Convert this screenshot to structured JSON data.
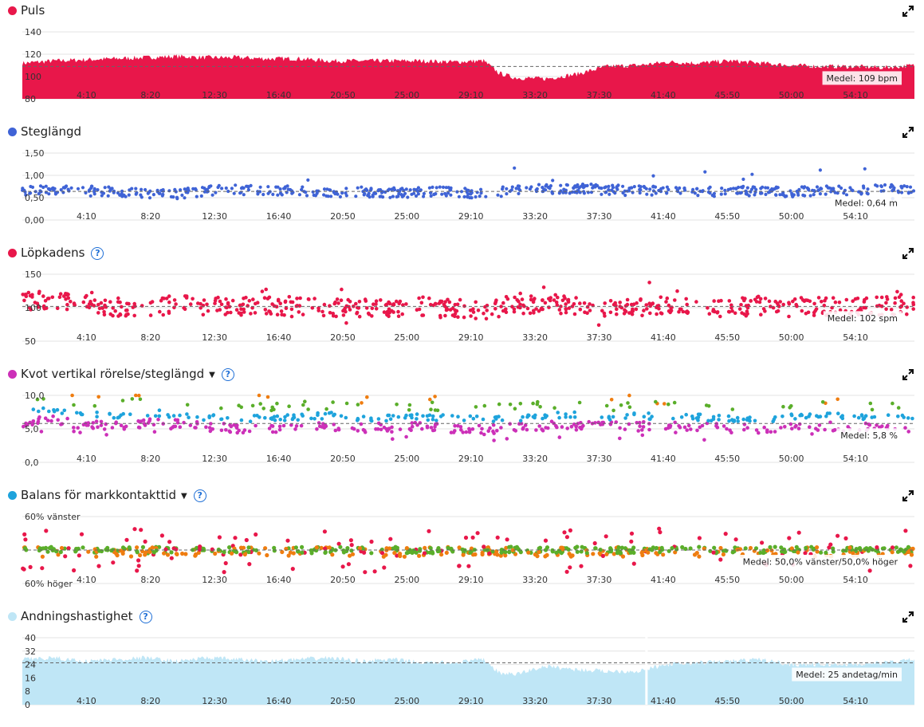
{
  "x_ticks": [
    "4:10",
    "8:20",
    "12:30",
    "16:40",
    "20:50",
    "25:00",
    "29:10",
    "33:20",
    "37:30",
    "41:40",
    "45:50",
    "50:00",
    "54:10"
  ],
  "chart_data": [
    {
      "id": "puls",
      "type": "area",
      "title": "Puls",
      "color": "#e8174a",
      "ylim": [
        80,
        140
      ],
      "y_ticks": [
        "140",
        "120",
        "100",
        "80"
      ],
      "y_tick_values": [
        140,
        120,
        100,
        80
      ],
      "average_label": "Medel: 109 bpm",
      "average_value": 109,
      "x_unit": "minutes",
      "x": [
        0,
        2,
        4,
        6,
        8,
        10,
        12,
        14,
        16,
        18,
        20,
        22,
        24,
        26,
        28,
        30,
        31,
        32,
        34,
        36,
        38,
        40,
        42,
        44,
        46,
        48,
        50,
        52,
        54,
        56,
        58
      ],
      "y": [
        112,
        114,
        115,
        116,
        117,
        118,
        117,
        117,
        116,
        116,
        114,
        114,
        114,
        114,
        113,
        114,
        103,
        99,
        98,
        102,
        109,
        110,
        113,
        112,
        114,
        112,
        110,
        109,
        109,
        108,
        110
      ]
    },
    {
      "id": "steglangd",
      "type": "scatter",
      "title": "Steglängd",
      "color": "#3f63d6",
      "ylim": [
        0,
        1.5
      ],
      "y_ticks": [
        "1,50",
        "1,00",
        "0,50",
        "0,00"
      ],
      "y_tick_values": [
        1.5,
        1.0,
        0.5,
        0.0
      ],
      "average_label": "Medel: 0,64 m",
      "average_value": 0.64,
      "x_unit": "minutes",
      "x": [
        0,
        2,
        4,
        6,
        8,
        10,
        12,
        14,
        16,
        18,
        20,
        22,
        24,
        26,
        28,
        30,
        32,
        34,
        36,
        38,
        40,
        42,
        44,
        46,
        48,
        50,
        52,
        54,
        56,
        58
      ],
      "y": [
        0.66,
        0.68,
        0.65,
        0.64,
        0.6,
        0.58,
        0.66,
        0.68,
        0.67,
        0.64,
        0.6,
        0.63,
        0.61,
        0.62,
        0.64,
        0.58,
        0.68,
        0.7,
        0.71,
        0.68,
        0.66,
        0.64,
        0.63,
        0.65,
        0.64,
        0.63,
        0.66,
        0.67,
        0.68,
        0.69
      ]
    },
    {
      "id": "lopkadens",
      "type": "scatter",
      "title": "Löpkadens",
      "color": "#e8174a",
      "ylim": [
        50,
        150
      ],
      "y_ticks": [
        "150",
        "100",
        "50"
      ],
      "y_tick_values": [
        150,
        100,
        50
      ],
      "average_label": "Medel: 102 spm",
      "average_value": 102,
      "x_unit": "minutes",
      "x": [
        0,
        2,
        4,
        6,
        8,
        10,
        12,
        14,
        16,
        18,
        20,
        22,
        24,
        26,
        28,
        30,
        32,
        34,
        36,
        38,
        40,
        42,
        44,
        46,
        48,
        50,
        52,
        54,
        56,
        58
      ],
      "y": [
        110,
        112,
        105,
        100,
        102,
        104,
        103,
        101,
        104,
        102,
        100,
        99,
        101,
        102,
        100,
        95,
        105,
        106,
        104,
        99,
        100,
        101,
        102,
        100,
        103,
        102,
        101,
        100,
        103,
        104
      ]
    },
    {
      "id": "kvot",
      "type": "scatter",
      "title": "Kvot vertikal rörelse/steglängd",
      "color": "#cc30b8",
      "ylim": [
        0,
        10
      ],
      "y_ticks": [
        "10,0",
        "5,0",
        "0,0"
      ],
      "y_tick_values": [
        10,
        5,
        0
      ],
      "average_label": "Medel: 5,8 %",
      "average_value": 5.8,
      "x_unit": "minutes",
      "series_colors": [
        "#cc30b8",
        "#1ea3dc",
        "#5aae2a",
        "#ef7d10"
      ],
      "x": [
        0,
        2,
        4,
        6,
        8,
        10,
        12,
        14,
        16,
        18,
        20,
        22,
        24,
        26,
        28,
        30,
        32,
        34,
        36,
        38,
        40,
        42,
        44,
        46,
        48,
        50,
        52,
        54,
        56,
        58
      ],
      "y": [
        6.5,
        6.8,
        6.2,
        6.0,
        6.5,
        6.3,
        5.8,
        5.6,
        5.7,
        5.9,
        6.1,
        5.7,
        5.8,
        5.9,
        5.6,
        5.5,
        5.7,
        6.0,
        6.2,
        5.9,
        6.0,
        6.1,
        5.8,
        5.7,
        5.6,
        5.8,
        5.9,
        6.0,
        5.7,
        5.8
      ]
    },
    {
      "id": "balans",
      "type": "scatter",
      "title": "Balans för markkontakttid",
      "color": "#1ea3dc",
      "y_ticks": [
        "60% vänster",
        "60% höger"
      ],
      "average_label": "Medel: 50,0% vänster/50,0% höger",
      "average_value": 50.0,
      "x_unit": "minutes",
      "series_colors": [
        "#5aae2a",
        "#ef7d10",
        "#e8174a"
      ],
      "x": [
        0,
        2,
        4,
        6,
        8,
        10,
        12,
        14,
        16,
        18,
        20,
        22,
        24,
        26,
        28,
        30,
        32,
        34,
        36,
        38,
        40,
        42,
        44,
        46,
        48,
        50,
        52,
        54,
        56,
        58
      ],
      "y": [
        50.0,
        50.2,
        49.8,
        50.0,
        49.5,
        50.3,
        49.9,
        50.1,
        50.0,
        49.7,
        50.4,
        50.0,
        49.8,
        50.1,
        49.9,
        50.0,
        50.2,
        49.8,
        50.0,
        50.1,
        49.9,
        50.0,
        50.1,
        49.9,
        50.2,
        50.0,
        49.8,
        50.0,
        49.9,
        49.8
      ]
    },
    {
      "id": "andning",
      "type": "area",
      "title": "Andningshastighet",
      "color": "#bfe6f6",
      "ylim": [
        0,
        40
      ],
      "y_ticks": [
        "40",
        "32",
        "24",
        "16",
        "8",
        "0"
      ],
      "y_tick_values": [
        40,
        32,
        24,
        16,
        8,
        0
      ],
      "average_label": "Medel: 25 andetag/min",
      "average_value": 25,
      "x_unit": "minutes",
      "x": [
        0,
        2,
        4,
        6,
        8,
        10,
        12,
        14,
        16,
        18,
        20,
        22,
        24,
        26,
        28,
        30,
        31,
        32,
        34,
        36,
        38,
        40,
        42,
        44,
        46,
        48,
        50,
        52,
        54,
        56,
        58
      ],
      "y": [
        27,
        28,
        26,
        27,
        28,
        26,
        28,
        27,
        26,
        27,
        28,
        26,
        27,
        25,
        25,
        27,
        19,
        18,
        23,
        21,
        20,
        20,
        24,
        25,
        26,
        27,
        24,
        24,
        24,
        25,
        27
      ]
    }
  ],
  "labels": {
    "expand_icon": "expand-icon",
    "help_icon": "help-icon"
  }
}
